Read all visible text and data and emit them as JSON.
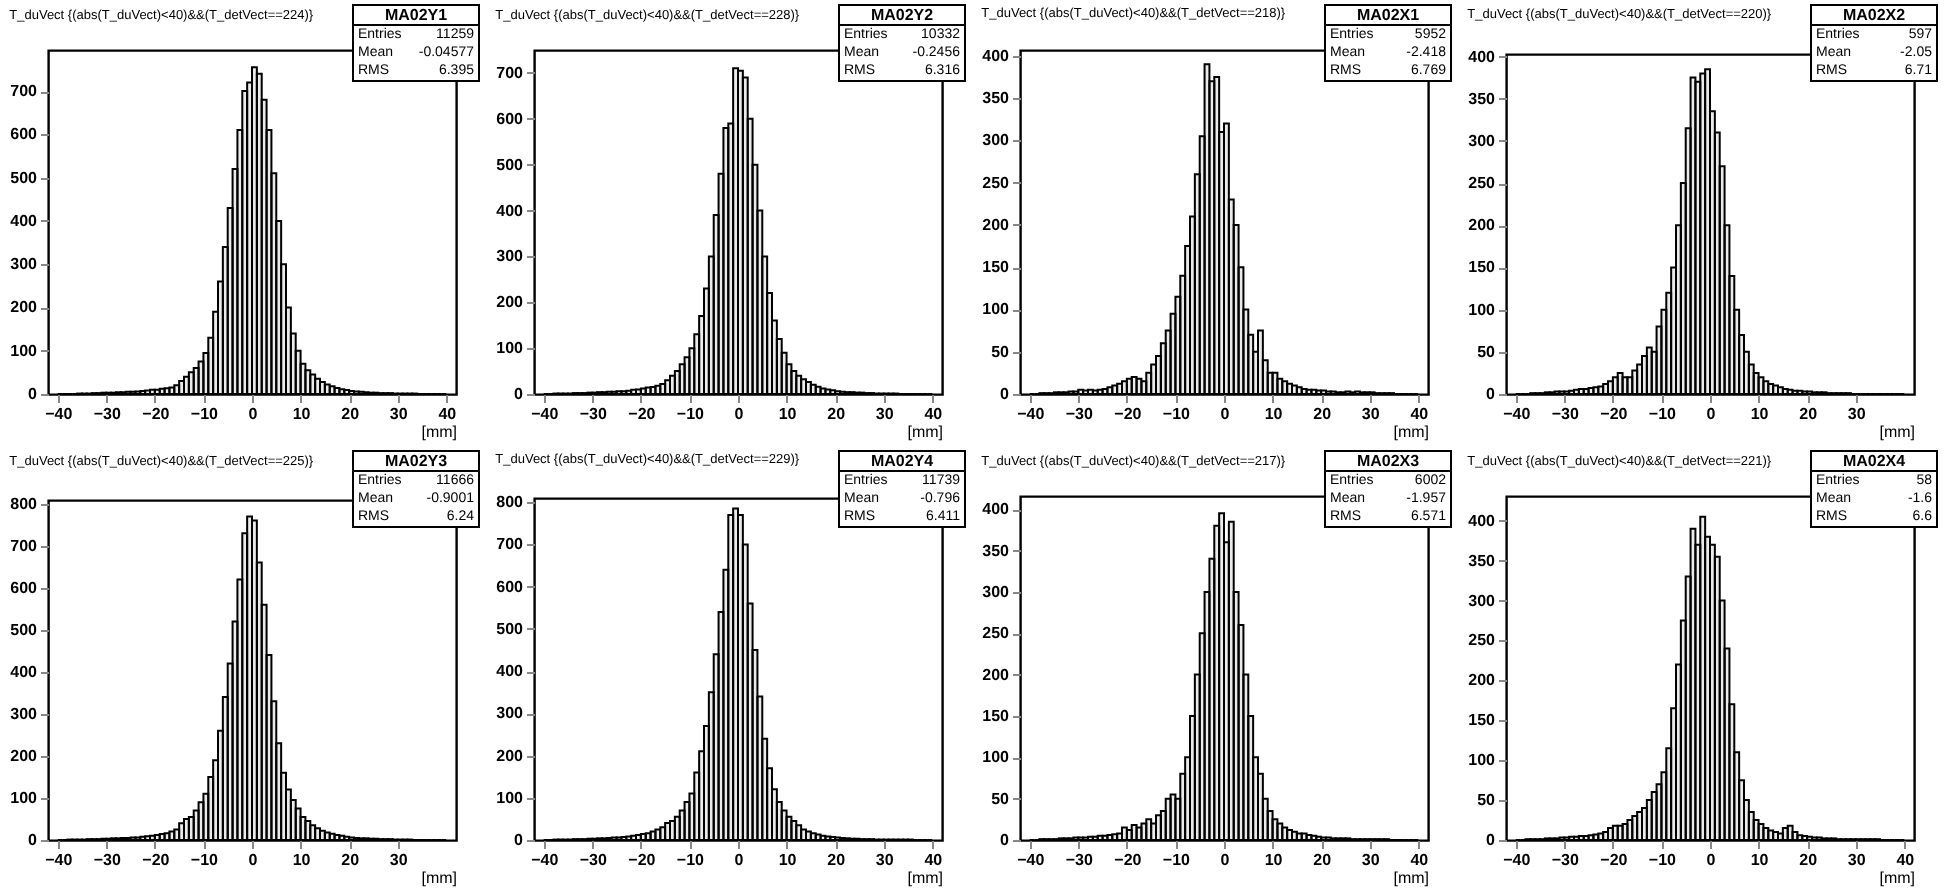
{
  "chart_data": [
    {
      "type": "histogram",
      "title": "T_duVect {(abs(T_duVect)<40)&&(T_detVect==224)}",
      "xlabel": "[mm]",
      "color": "#000000",
      "grid": false,
      "xlim": [
        -42,
        42
      ],
      "ylim": [
        0,
        795
      ],
      "xticks": [
        -40,
        -30,
        -20,
        -10,
        0,
        10,
        20,
        30,
        40
      ],
      "yticks": [
        0,
        100,
        200,
        300,
        400,
        500,
        600,
        700
      ],
      "annotations": [
        "MA02Y1",
        "Entries 11259",
        "Mean -0.04577",
        "RMS 6.395"
      ],
      "bins": [
        -40,
        -39,
        -38,
        -37,
        -36,
        -35,
        -34,
        -33,
        -32,
        -31,
        -30,
        -29,
        -28,
        -27,
        -26,
        -25,
        -24,
        -23,
        -22,
        -21,
        -20,
        -19,
        -18,
        -17,
        -16,
        -15,
        -14,
        -13,
        -12,
        -11,
        -10,
        -9,
        -8,
        -7,
        -6,
        -5,
        -4,
        -3,
        -2,
        -1,
        0,
        1,
        2,
        3,
        4,
        5,
        6,
        7,
        8,
        9,
        10,
        11,
        12,
        13,
        14,
        15,
        16,
        17,
        18,
        19,
        20,
        21,
        22,
        23,
        24,
        25,
        26,
        27,
        28,
        29,
        30,
        31,
        32,
        33,
        34,
        35,
        36,
        37,
        38,
        39,
        40
      ],
      "values": [
        0,
        0,
        0,
        0,
        1,
        1,
        1,
        2,
        2,
        3,
        3,
        3,
        4,
        4,
        5,
        5,
        6,
        7,
        8,
        10,
        10,
        12,
        13,
        15,
        20,
        30,
        40,
        50,
        60,
        75,
        95,
        130,
        190,
        260,
        340,
        430,
        520,
        610,
        700,
        720,
        755,
        740,
        680,
        610,
        510,
        400,
        300,
        200,
        140,
        100,
        70,
        55,
        45,
        35,
        28,
        22,
        18,
        14,
        11,
        9,
        7,
        6,
        5,
        4,
        3,
        3,
        2,
        2,
        2,
        1,
        1,
        1,
        1,
        1,
        0,
        0,
        0,
        0,
        0,
        0
      ]
    },
    {
      "type": "histogram",
      "title": "T_duVect {(abs(T_duVect)<40)&&(T_detVect==228)}",
      "xlabel": "[mm]",
      "color": "#000000",
      "grid": false,
      "xlim": [
        -42,
        42
      ],
      "ylim": [
        0,
        750
      ],
      "xticks": [
        -40,
        -30,
        -20,
        -10,
        0,
        10,
        20,
        30,
        40
      ],
      "yticks": [
        0,
        100,
        200,
        300,
        400,
        500,
        600,
        700
      ],
      "annotations": [
        "MA02Y2",
        "Entries 10332",
        "Mean -0.2456",
        "RMS 6.316"
      ],
      "bins": [
        -40,
        -39,
        -38,
        -37,
        -36,
        -35,
        -34,
        -33,
        -32,
        -31,
        -30,
        -29,
        -28,
        -27,
        -26,
        -25,
        -24,
        -23,
        -22,
        -21,
        -20,
        -19,
        -18,
        -17,
        -16,
        -15,
        -14,
        -13,
        -12,
        -11,
        -10,
        -9,
        -8,
        -7,
        -6,
        -5,
        -4,
        -3,
        -2,
        -1,
        0,
        1,
        2,
        3,
        4,
        5,
        6,
        7,
        8,
        9,
        10,
        11,
        12,
        13,
        14,
        15,
        16,
        17,
        18,
        19,
        20,
        21,
        22,
        23,
        24,
        25,
        26,
        27,
        28,
        29,
        30,
        31,
        32,
        33,
        34,
        35,
        36,
        37,
        38,
        39,
        40
      ],
      "values": [
        0,
        0,
        1,
        1,
        1,
        1,
        2,
        2,
        2,
        3,
        3,
        4,
        4,
        5,
        5,
        6,
        6,
        7,
        9,
        10,
        12,
        14,
        15,
        18,
        22,
        30,
        40,
        50,
        65,
        80,
        100,
        130,
        170,
        230,
        300,
        390,
        480,
        580,
        590,
        710,
        705,
        690,
        600,
        500,
        400,
        300,
        220,
        160,
        120,
        90,
        65,
        50,
        40,
        32,
        26,
        20,
        16,
        12,
        10,
        8,
        6,
        5,
        4,
        4,
        3,
        3,
        2,
        2,
        1,
        1,
        1,
        1,
        1,
        0,
        0,
        0,
        0,
        0,
        0,
        0
      ]
    },
    {
      "type": "histogram",
      "title": "T_duVect {(abs(T_duVect)<40)&&(T_detVect==218)}",
      "xlabel": "[mm]",
      "color": "#000000",
      "grid": false,
      "xlim": [
        -42,
        42
      ],
      "ylim": [
        0,
        407
      ],
      "xticks": [
        -40,
        -30,
        -20,
        -10,
        0,
        10,
        20,
        30,
        40
      ],
      "yticks": [
        0,
        50,
        100,
        150,
        200,
        250,
        300,
        350,
        400
      ],
      "annotations": [
        "MA02X1",
        "Entries 5952",
        "Mean -2.418",
        "RMS 6.769"
      ],
      "bins": [
        -40,
        -39,
        -38,
        -37,
        -36,
        -35,
        -34,
        -33,
        -32,
        -31,
        -30,
        -29,
        -28,
        -27,
        -26,
        -25,
        -24,
        -23,
        -22,
        -21,
        -20,
        -19,
        -18,
        -17,
        -16,
        -15,
        -14,
        -13,
        -12,
        -11,
        -10,
        -9,
        -8,
        -7,
        -6,
        -5,
        -4,
        -3,
        -2,
        -1,
        0,
        1,
        2,
        3,
        4,
        5,
        6,
        7,
        8,
        9,
        10,
        11,
        12,
        13,
        14,
        15,
        16,
        17,
        18,
        19,
        20,
        21,
        22,
        23,
        24,
        25,
        26,
        27,
        28,
        29,
        30,
        31,
        32,
        33,
        34,
        35,
        36,
        37,
        38,
        39,
        40
      ],
      "values": [
        0,
        0,
        1,
        1,
        1,
        2,
        2,
        2,
        3,
        3,
        5,
        4,
        5,
        4,
        5,
        6,
        8,
        10,
        12,
        15,
        18,
        20,
        18,
        15,
        25,
        35,
        45,
        60,
        75,
        95,
        115,
        140,
        175,
        210,
        260,
        305,
        390,
        370,
        375,
        310,
        320,
        230,
        200,
        150,
        100,
        70,
        50,
        75,
        40,
        25,
        25,
        18,
        15,
        12,
        10,
        8,
        6,
        5,
        5,
        4,
        4,
        3,
        3,
        2,
        2,
        3,
        2,
        3,
        2,
        2,
        2,
        1,
        1,
        1,
        1,
        0,
        0,
        0,
        0,
        0
      ]
    },
    {
      "type": "histogram",
      "title": "T_duVect {(abs(T_duVect)<40)&&(T_detVect==220)}",
      "xlabel": "[mm]",
      "color": "#000000",
      "grid": false,
      "xlim": [
        -42,
        42
      ],
      "ylim": [
        0,
        403
      ],
      "xticks": [
        -40,
        -30,
        -20,
        -10,
        0,
        10,
        20,
        30
      ],
      "yticks": [
        0,
        50,
        100,
        150,
        200,
        250,
        300,
        350,
        400
      ],
      "annotations": [
        "MA02X2",
        "Entries 597",
        "Mean -2.05",
        "RMS 6.71"
      ],
      "bins": [
        -40,
        -39,
        -38,
        -37,
        -36,
        -35,
        -34,
        -33,
        -32,
        -31,
        -30,
        -29,
        -28,
        -27,
        -26,
        -25,
        -24,
        -23,
        -22,
        -21,
        -20,
        -19,
        -18,
        -17,
        -16,
        -15,
        -14,
        -13,
        -12,
        -11,
        -10,
        -9,
        -8,
        -7,
        -6,
        -5,
        -4,
        -3,
        -2,
        -1,
        0,
        1,
        2,
        3,
        4,
        5,
        6,
        7,
        8,
        9,
        10,
        11,
        12,
        13,
        14,
        15,
        16,
        17,
        18,
        19,
        20,
        21,
        22,
        23,
        24,
        25,
        26,
        27,
        28,
        29,
        30,
        31,
        32,
        33,
        34,
        35,
        36,
        37,
        38,
        39,
        40
      ],
      "values": [
        0,
        0,
        0,
        1,
        1,
        1,
        2,
        2,
        3,
        3,
        3,
        4,
        5,
        6,
        6,
        7,
        8,
        9,
        12,
        15,
        20,
        25,
        20,
        20,
        28,
        35,
        45,
        55,
        50,
        80,
        100,
        120,
        150,
        200,
        250,
        315,
        375,
        370,
        380,
        385,
        335,
        310,
        270,
        200,
        140,
        100,
        70,
        50,
        35,
        25,
        20,
        15,
        12,
        10,
        8,
        6,
        5,
        4,
        4,
        3,
        3,
        2,
        2,
        2,
        1,
        1,
        1,
        1,
        1,
        0,
        0,
        0,
        0,
        0,
        0,
        0,
        0,
        0,
        0,
        0
      ]
    },
    {
      "type": "histogram",
      "title": "T_duVect {(abs(T_duVect)<40)&&(T_detVect==225)}",
      "xlabel": "[mm]",
      "color": "#000000",
      "grid": false,
      "xlim": [
        -42,
        42
      ],
      "ylim": [
        0,
        809
      ],
      "xticks": [
        -40,
        -30,
        -20,
        -10,
        0,
        10,
        20,
        30
      ],
      "yticks": [
        0,
        100,
        200,
        300,
        400,
        500,
        600,
        700,
        800
      ],
      "annotations": [
        "MA02Y3",
        "Entries 11666",
        "Mean -0.9001",
        "RMS 6.24"
      ],
      "bins": [
        -40,
        -39,
        -38,
        -37,
        -36,
        -35,
        -34,
        -33,
        -32,
        -31,
        -30,
        -29,
        -28,
        -27,
        -26,
        -25,
        -24,
        -23,
        -22,
        -21,
        -20,
        -19,
        -18,
        -17,
        -16,
        -15,
        -14,
        -13,
        -12,
        -11,
        -10,
        -9,
        -8,
        -7,
        -6,
        -5,
        -4,
        -3,
        -2,
        -1,
        0,
        1,
        2,
        3,
        4,
        5,
        6,
        7,
        8,
        9,
        10,
        11,
        12,
        13,
        14,
        15,
        16,
        17,
        18,
        19,
        20,
        21,
        22,
        23,
        24,
        25,
        26,
        27,
        28,
        29,
        30,
        31,
        32,
        33,
        34,
        35,
        36,
        37,
        38,
        39,
        40
      ],
      "values": [
        0,
        0,
        1,
        1,
        1,
        1,
        2,
        2,
        2,
        3,
        3,
        4,
        4,
        5,
        5,
        6,
        6,
        8,
        9,
        10,
        12,
        14,
        16,
        20,
        25,
        40,
        50,
        55,
        70,
        90,
        110,
        150,
        190,
        260,
        340,
        420,
        520,
        620,
        730,
        770,
        760,
        660,
        560,
        440,
        330,
        230,
        160,
        120,
        95,
        75,
        55,
        45,
        35,
        28,
        22,
        18,
        15,
        12,
        10,
        8,
        6,
        5,
        4,
        4,
        3,
        3,
        2,
        2,
        2,
        1,
        1,
        1,
        1,
        0,
        0,
        0,
        0,
        0,
        0,
        0
      ]
    },
    {
      "type": "histogram",
      "title": "T_duVect {(abs(T_duVect)<40)&&(T_detVect==229)}",
      "xlabel": "[mm]",
      "color": "#000000",
      "grid": false,
      "xlim": [
        -42,
        42
      ],
      "ylim": [
        0,
        810
      ],
      "xticks": [
        -40,
        -30,
        -20,
        -10,
        0,
        10,
        20,
        30,
        40
      ],
      "yticks": [
        0,
        100,
        200,
        300,
        400,
        500,
        600,
        700,
        800
      ],
      "annotations": [
        "MA02Y4",
        "Entries 11739",
        "Mean -0.796",
        "RMS 6.411"
      ],
      "bins": [
        -40,
        -39,
        -38,
        -37,
        -36,
        -35,
        -34,
        -33,
        -32,
        -31,
        -30,
        -29,
        -28,
        -27,
        -26,
        -25,
        -24,
        -23,
        -22,
        -21,
        -20,
        -19,
        -18,
        -17,
        -16,
        -15,
        -14,
        -13,
        -12,
        -11,
        -10,
        -9,
        -8,
        -7,
        -6,
        -5,
        -4,
        -3,
        -2,
        -1,
        0,
        1,
        2,
        3,
        4,
        5,
        6,
        7,
        8,
        9,
        10,
        11,
        12,
        13,
        14,
        15,
        16,
        17,
        18,
        19,
        20,
        21,
        22,
        23,
        24,
        25,
        26,
        27,
        28,
        29,
        30,
        31,
        32,
        33,
        34,
        35,
        36,
        37,
        38,
        39,
        40
      ],
      "values": [
        0,
        0,
        1,
        1,
        1,
        1,
        2,
        2,
        2,
        3,
        3,
        4,
        4,
        5,
        6,
        6,
        7,
        8,
        10,
        12,
        14,
        16,
        20,
        25,
        30,
        40,
        45,
        55,
        70,
        90,
        110,
        160,
        210,
        270,
        350,
        440,
        540,
        640,
        770,
        785,
        770,
        700,
        560,
        450,
        340,
        240,
        170,
        120,
        90,
        70,
        55,
        45,
        35,
        25,
        20,
        16,
        13,
        10,
        8,
        7,
        6,
        5,
        4,
        3,
        3,
        2,
        2,
        2,
        1,
        1,
        1,
        1,
        1,
        1,
        1,
        1,
        0,
        0,
        0,
        0
      ]
    },
    {
      "type": "histogram",
      "title": "T_duVect {(abs(T_duVect)<40)&&(T_detVect==217)}",
      "xlabel": "[mm]",
      "color": "#000000",
      "grid": false,
      "xlim": [
        -42,
        42
      ],
      "ylim": [
        0,
        416
      ],
      "xticks": [
        -40,
        -30,
        -20,
        -10,
        0,
        10,
        20,
        30,
        40
      ],
      "yticks": [
        0,
        50,
        100,
        150,
        200,
        250,
        300,
        350,
        400
      ],
      "annotations": [
        "MA02X3",
        "Entries 6002",
        "Mean -1.957",
        "RMS 6.571"
      ],
      "bins": [
        -40,
        -39,
        -38,
        -37,
        -36,
        -35,
        -34,
        -33,
        -32,
        -31,
        -30,
        -29,
        -28,
        -27,
        -26,
        -25,
        -24,
        -23,
        -22,
        -21,
        -20,
        -19,
        -18,
        -17,
        -16,
        -15,
        -14,
        -13,
        -12,
        -11,
        -10,
        -9,
        -8,
        -7,
        -6,
        -5,
        -4,
        -3,
        -2,
        -1,
        0,
        1,
        2,
        3,
        4,
        5,
        6,
        7,
        8,
        9,
        10,
        11,
        12,
        13,
        14,
        15,
        16,
        17,
        18,
        19,
        20,
        21,
        22,
        23,
        24,
        25,
        26,
        27,
        28,
        29,
        30,
        31,
        32,
        33,
        34,
        35,
        36,
        37,
        38,
        39,
        40
      ],
      "values": [
        0,
        0,
        1,
        1,
        1,
        1,
        2,
        2,
        2,
        3,
        3,
        3,
        4,
        4,
        5,
        5,
        6,
        7,
        8,
        15,
        12,
        18,
        15,
        20,
        25,
        20,
        30,
        35,
        50,
        55,
        50,
        80,
        100,
        150,
        200,
        250,
        300,
        340,
        380,
        395,
        360,
        385,
        300,
        260,
        200,
        150,
        100,
        80,
        50,
        35,
        25,
        20,
        15,
        12,
        10,
        8,
        8,
        6,
        5,
        4,
        3,
        3,
        2,
        2,
        2,
        2,
        1,
        1,
        1,
        1,
        1,
        1,
        1,
        1,
        0,
        0,
        0,
        0,
        0,
        0
      ]
    },
    {
      "type": "histogram",
      "title": "T_duVect {(abs(T_duVect)<40)&&(T_detVect==221)}",
      "xlabel": "[mm]",
      "color": "#000000",
      "grid": false,
      "xlim": [
        -42,
        42
      ],
      "ylim": [
        0,
        431
      ],
      "xticks": [
        -40,
        -30,
        -20,
        -10,
        0,
        10,
        20,
        30,
        40
      ],
      "yticks": [
        0,
        50,
        100,
        150,
        200,
        250,
        300,
        350,
        400
      ],
      "annotations": [
        "MA02X4",
        "Entries 58",
        "Mean -1.6",
        "RMS 6.6"
      ],
      "bins": [
        -40,
        -39,
        -38,
        -37,
        -36,
        -35,
        -34,
        -33,
        -32,
        -31,
        -30,
        -29,
        -28,
        -27,
        -26,
        -25,
        -24,
        -23,
        -22,
        -21,
        -20,
        -19,
        -18,
        -17,
        -16,
        -15,
        -14,
        -13,
        -12,
        -11,
        -10,
        -9,
        -8,
        -7,
        -6,
        -5,
        -4,
        -3,
        -2,
        -1,
        0,
        1,
        2,
        3,
        4,
        5,
        6,
        7,
        8,
        9,
        10,
        11,
        12,
        13,
        14,
        15,
        16,
        17,
        18,
        19,
        20,
        21,
        22,
        23,
        24,
        25,
        26,
        27,
        28,
        29,
        30,
        31,
        32,
        33,
        34,
        35,
        36,
        37,
        38,
        39,
        40
      ],
      "values": [
        0,
        0,
        1,
        1,
        1,
        1,
        2,
        2,
        2,
        3,
        3,
        4,
        4,
        5,
        5,
        6,
        7,
        8,
        10,
        15,
        18,
        18,
        20,
        25,
        30,
        35,
        40,
        50,
        60,
        70,
        85,
        115,
        165,
        220,
        275,
        330,
        390,
        370,
        405,
        380,
        370,
        355,
        300,
        240,
        170,
        110,
        75,
        50,
        35,
        25,
        20,
        15,
        12,
        10,
        8,
        15,
        18,
        10,
        6,
        5,
        4,
        3,
        3,
        2,
        2,
        2,
        1,
        1,
        1,
        1,
        1,
        1,
        1,
        1,
        1,
        0,
        0,
        0,
        0,
        0
      ]
    }
  ]
}
